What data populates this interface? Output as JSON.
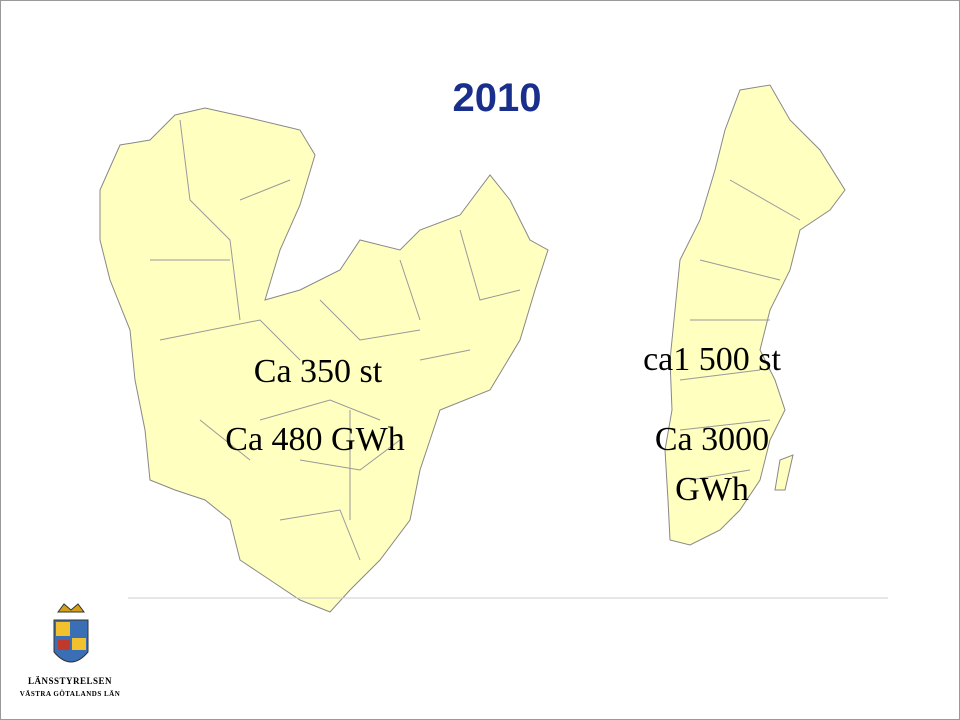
{
  "title": "2010",
  "left_map": {
    "labels": [
      "Ca 350 st",
      "Ca 480 GWh"
    ]
  },
  "right_map": {
    "labels": [
      "ca1 500 st",
      "Ca 3000 GWh"
    ]
  },
  "logo": {
    "lines": [
      "LÄNSSTYRELSEN",
      "VÄSTRA GÖTALANDS LÄN"
    ]
  }
}
